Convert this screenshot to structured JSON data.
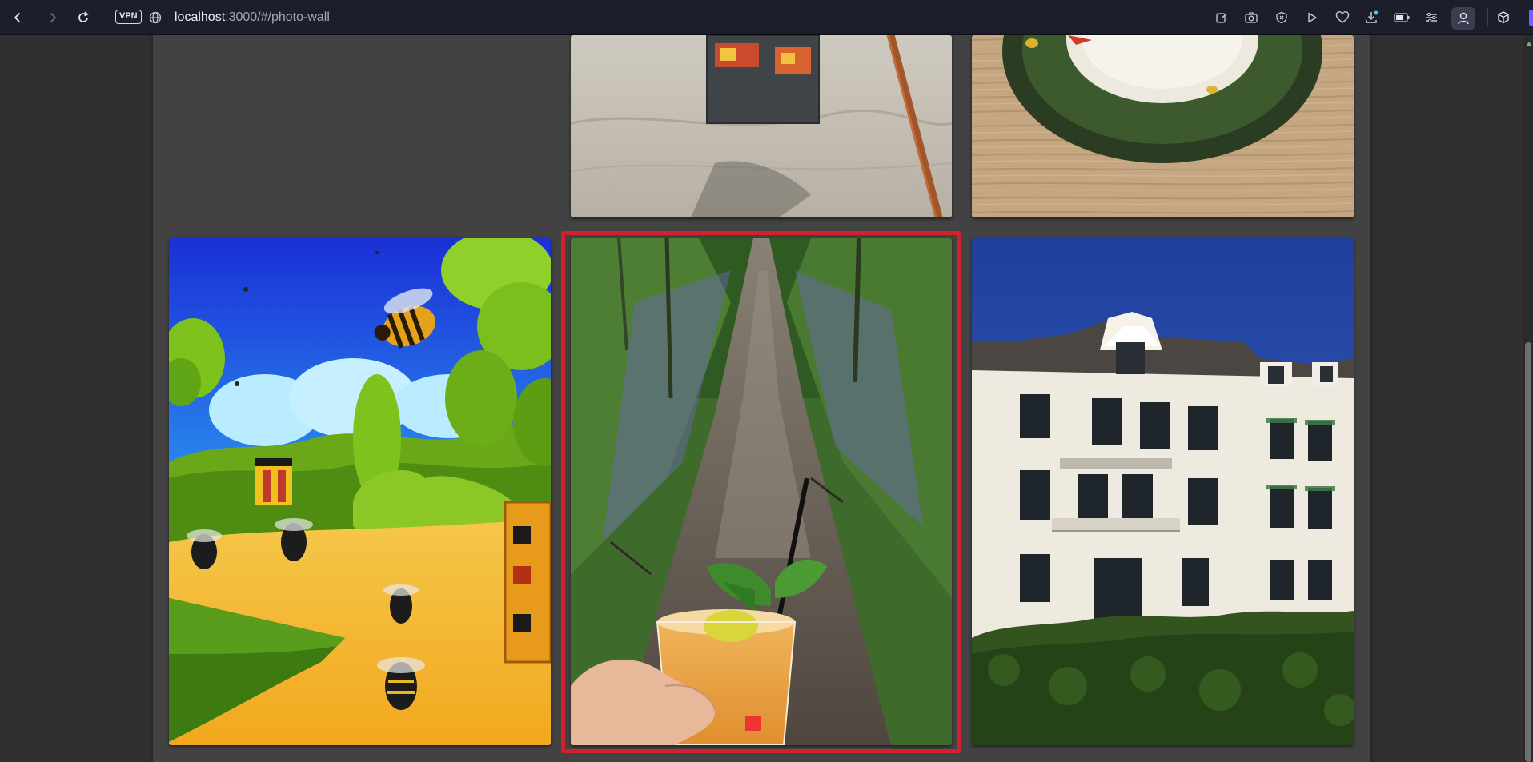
{
  "browser": {
    "vpn_label": "VPN",
    "url_host": "localhost",
    "url_rest": ":3000/#/photo-wall",
    "accent_color": "#7c5cff"
  },
  "gallery": {
    "photos": [
      {
        "name": "photo-top-middle",
        "subject": "sticker on wall"
      },
      {
        "name": "photo-top-right",
        "subject": "coaster on table"
      },
      {
        "name": "photo-bees-cartoon",
        "subject": "cartoon bees"
      },
      {
        "name": "photo-forest-path-drink",
        "subject": "forest path with drink",
        "selected": true
      },
      {
        "name": "photo-white-building",
        "subject": "white building"
      }
    ],
    "highlight_color": "#d0212c"
  }
}
